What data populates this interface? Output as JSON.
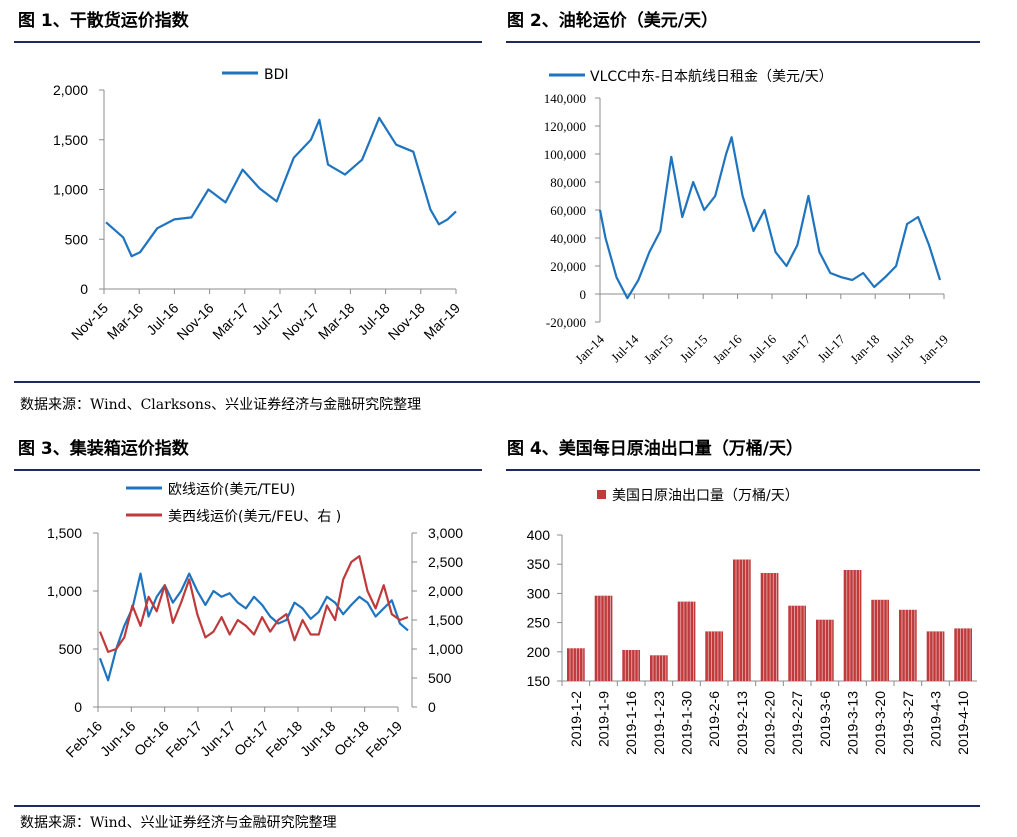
{
  "sections": {
    "fig1_title": "图 1、干散货运价指数",
    "fig2_title": "图 2、油轮运价（美元/天）",
    "fig3_title": "图 3、集装箱运价指数",
    "fig4_title": "图 4、美国每日原油出口量（万桶/天）",
    "source_top": "数据来源：Wind、Clarksons、兴业证券经济与金融研究院整理",
    "source_bottom": "数据来源：Wind、兴业证券经济与金融研究院整理"
  },
  "colors": {
    "blue": "#1f74c0",
    "red": "#c0393b",
    "rule": "#1f2a5c"
  },
  "chart_data": [
    {
      "type": "line",
      "legend": [
        "BDI"
      ],
      "ylim": [
        0,
        2000
      ],
      "yticks": [
        "2,000",
        "1,500",
        "1,000",
        "500",
        "0"
      ],
      "x_tick_labels": [
        "Nov-15",
        "Mar-16",
        "Jul-16",
        "Nov-16",
        "Mar-17",
        "Jul-17",
        "Nov-17",
        "Mar-18",
        "Jul-18",
        "Nov-18",
        "Mar-19"
      ],
      "x": [
        "2015-11",
        "2016-01",
        "2016-02",
        "2016-03",
        "2016-05",
        "2016-07",
        "2016-09",
        "2016-11",
        "2017-01",
        "2017-03",
        "2017-05",
        "2017-07",
        "2017-09",
        "2017-11",
        "2017-12",
        "2018-01",
        "2018-03",
        "2018-05",
        "2018-07",
        "2018-09",
        "2018-11",
        "2019-01",
        "2019-02",
        "2019-03",
        "2019-04"
      ],
      "series": [
        {
          "name": "BDI",
          "values": [
            670,
            520,
            330,
            370,
            610,
            700,
            720,
            1000,
            870,
            1200,
            1010,
            880,
            1320,
            1500,
            1700,
            1250,
            1150,
            1300,
            1720,
            1450,
            1380,
            800,
            650,
            700,
            780
          ]
        }
      ]
    },
    {
      "type": "line",
      "legend": [
        "VLCC中东-日本航线日租金（美元/天）"
      ],
      "ylim": [
        -20000,
        140000
      ],
      "yticks": [
        "140,000",
        "120,000",
        "100,000",
        "80,000",
        "60,000",
        "40,000",
        "20,000",
        "0",
        "-20,000"
      ],
      "x_tick_labels": [
        "Jan-14",
        "Jul-14",
        "Jan-15",
        "Jul-15",
        "Jan-16",
        "Jul-16",
        "Jan-17",
        "Jul-17",
        "Jan-18",
        "Jul-18",
        "Jan-19"
      ],
      "x": [
        "2014-01",
        "2014-02",
        "2014-04",
        "2014-06",
        "2014-08",
        "2014-10",
        "2014-12",
        "2015-02",
        "2015-04",
        "2015-06",
        "2015-08",
        "2015-10",
        "2015-12",
        "2016-01",
        "2016-03",
        "2016-05",
        "2016-07",
        "2016-09",
        "2016-11",
        "2017-01",
        "2017-03",
        "2017-05",
        "2017-07",
        "2017-09",
        "2017-11",
        "2018-01",
        "2018-03",
        "2018-05",
        "2018-07",
        "2018-09",
        "2018-11",
        "2019-01",
        "2019-03"
      ],
      "series": [
        {
          "name": "VLCC中东-日本航线日租金（美元/天）",
          "values": [
            60000,
            40000,
            12000,
            -3000,
            10000,
            30000,
            45000,
            98000,
            55000,
            80000,
            60000,
            70000,
            100000,
            112000,
            70000,
            45000,
            60000,
            30000,
            20000,
            35000,
            70000,
            30000,
            15000,
            12000,
            10000,
            15000,
            5000,
            12000,
            20000,
            50000,
            55000,
            35000,
            10000
          ]
        }
      ]
    },
    {
      "type": "line",
      "legend": [
        "欧线运价(美元/TEU)",
        "美西线运价(美元/FEU、右 )"
      ],
      "ylim_left": [
        0,
        1500
      ],
      "ylim_right": [
        0,
        3000
      ],
      "yticks_left": [
        "1,500",
        "1,000",
        "500",
        "0"
      ],
      "yticks_right": [
        "3,000",
        "2,500",
        "2,000",
        "1,500",
        "1,000",
        "500",
        "0"
      ],
      "x_tick_labels": [
        "Feb-16",
        "Jun-16",
        "Oct-16",
        "Feb-17",
        "Jun-17",
        "Oct-17",
        "Feb-18",
        "Jun-18",
        "Oct-18",
        "Feb-19"
      ],
      "x": [
        "2016-02",
        "2016-03",
        "2016-04",
        "2016-05",
        "2016-06",
        "2016-07",
        "2016-08",
        "2016-09",
        "2016-10",
        "2016-11",
        "2016-12",
        "2017-01",
        "2017-02",
        "2017-03",
        "2017-04",
        "2017-05",
        "2017-06",
        "2017-07",
        "2017-08",
        "2017-09",
        "2017-10",
        "2017-11",
        "2017-12",
        "2018-01",
        "2018-02",
        "2018-03",
        "2018-04",
        "2018-05",
        "2018-06",
        "2018-07",
        "2018-08",
        "2018-09",
        "2018-10",
        "2018-11",
        "2018-12",
        "2019-01",
        "2019-02",
        "2019-03",
        "2019-04"
      ],
      "series": [
        {
          "name": "欧线运价(美元/TEU)",
          "axis": "left",
          "values": [
            420,
            230,
            500,
            700,
            850,
            1150,
            780,
            950,
            1050,
            900,
            1000,
            1150,
            1000,
            880,
            1000,
            950,
            980,
            900,
            850,
            950,
            880,
            780,
            720,
            750,
            900,
            850,
            760,
            820,
            950,
            900,
            800,
            880,
            950,
            900,
            780,
            850,
            920,
            720,
            660
          ]
        },
        {
          "name": "美西线运价(美元/FEU、右 )",
          "axis": "right",
          "values": [
            1300,
            950,
            1000,
            1200,
            1750,
            1400,
            1900,
            1650,
            2100,
            1450,
            1800,
            2200,
            1600,
            1200,
            1300,
            1550,
            1250,
            1500,
            1400,
            1250,
            1550,
            1300,
            1500,
            1600,
            1150,
            1500,
            1250,
            1250,
            1750,
            1500,
            2200,
            2500,
            2600,
            2000,
            1700,
            2100,
            1600,
            1500,
            1550
          ]
        }
      ]
    },
    {
      "type": "bar",
      "legend": [
        "美国日原油出口量（万桶/天）"
      ],
      "ylim": [
        150,
        400
      ],
      "yticks": [
        "400",
        "350",
        "300",
        "250",
        "200",
        "150"
      ],
      "categories": [
        "2019-1-2",
        "2019-1-9",
        "2019-1-16",
        "2019-1-23",
        "2019-1-30",
        "2019-2-6",
        "2019-2-13",
        "2019-2-20",
        "2019-2-27",
        "2019-3-6",
        "2019-3-13",
        "2019-3-20",
        "2019-3-27",
        "2019-4-3",
        "2019-4-10"
      ],
      "series": [
        {
          "name": "美国日原油出口量（万桶/天）",
          "values": [
            206,
            296,
            203,
            194,
            286,
            235,
            358,
            335,
            279,
            255,
            340,
            289,
            272,
            235,
            240
          ]
        }
      ]
    }
  ]
}
